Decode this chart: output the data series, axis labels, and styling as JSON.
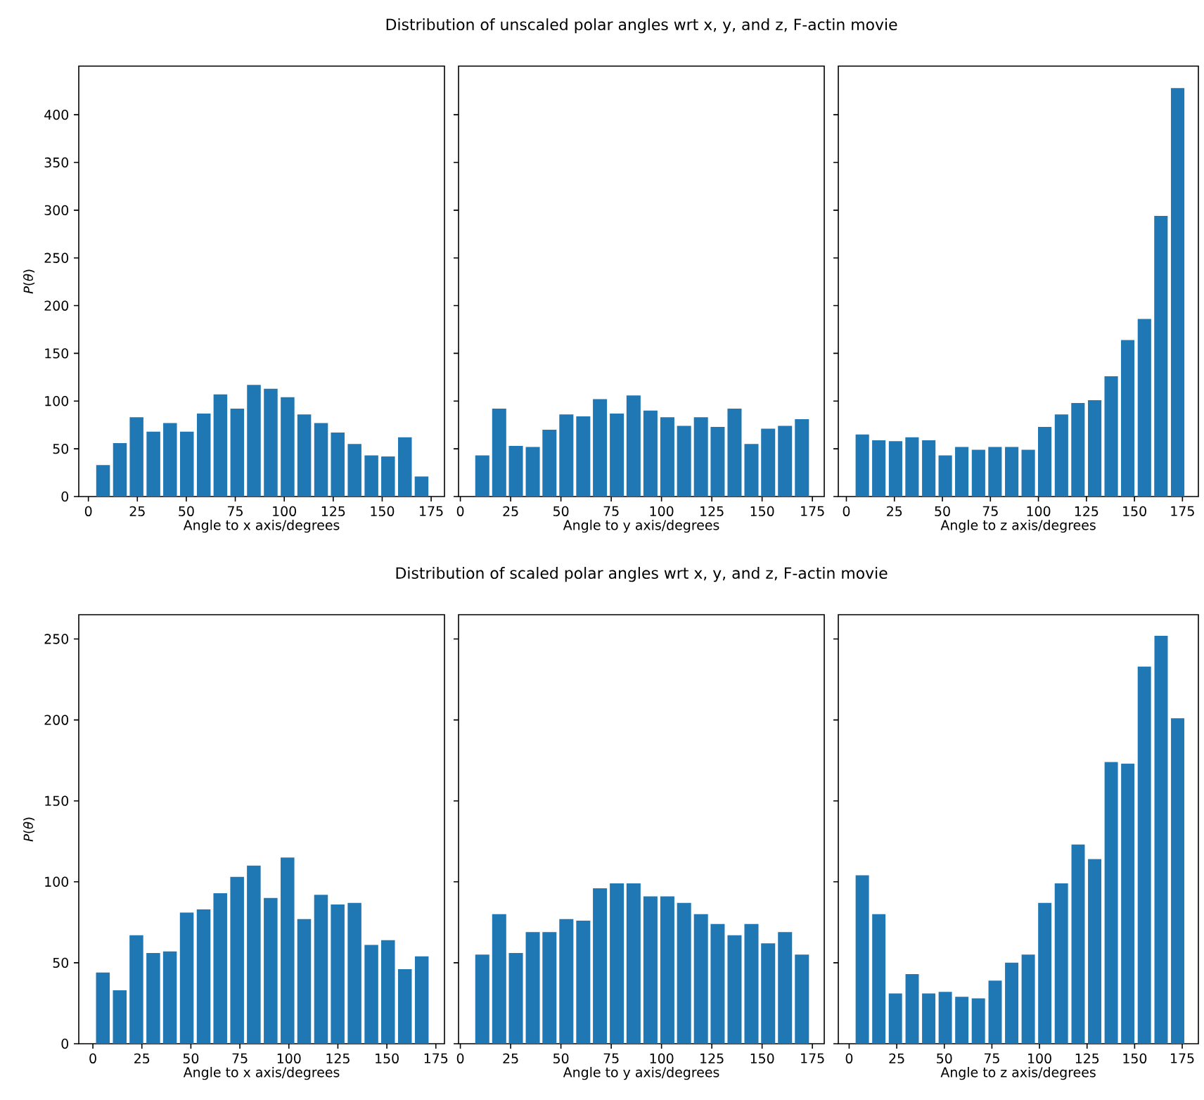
{
  "chart_data": [
    {
      "type": "bar",
      "xlabel": "Angle to x axis/degrees",
      "ylabel": "*P*(*θ*)",
      "color": "#1f77b4",
      "x": [
        7.5,
        16.1,
        24.6,
        33.2,
        41.7,
        50.3,
        58.9,
        67.4,
        76.0,
        84.5,
        93.1,
        101.7,
        110.2,
        118.8,
        127.3,
        135.9,
        144.5,
        153.0,
        161.6,
        170.1
      ],
      "values": [
        33,
        56,
        83,
        68,
        77,
        68,
        87,
        107,
        92,
        117,
        113,
        104,
        86,
        77,
        67,
        55,
        43,
        42,
        62,
        21
      ],
      "xlim": [
        -4.9,
        181.8
      ],
      "ylim": [
        0,
        451
      ],
      "xticks": [
        0,
        25,
        50,
        75,
        100,
        125,
        150,
        175
      ],
      "yticks": [
        0,
        50,
        100,
        150,
        200,
        250,
        300,
        350,
        400
      ]
    },
    {
      "type": "bar",
      "title": "Distribution of unscaled polar angles wrt x, y, and z, F-actin movie",
      "xlabel": "Angle to y axis/degrees",
      "color": "#1f77b4",
      "x": [
        10.9,
        19.3,
        27.6,
        36.0,
        44.3,
        52.7,
        61.1,
        69.4,
        77.8,
        86.1,
        94.5,
        102.9,
        111.2,
        119.6,
        127.9,
        136.3,
        144.7,
        153.0,
        161.4,
        169.8
      ],
      "values": [
        43,
        92,
        53,
        52,
        70,
        86,
        84,
        102,
        87,
        106,
        90,
        83,
        74,
        83,
        73,
        92,
        55,
        71,
        74,
        81
      ],
      "xlim": [
        -0.9,
        180.9
      ],
      "ylim": [
        0,
        451
      ],
      "xticks": [
        0,
        25,
        50,
        75,
        100,
        125,
        150,
        175
      ],
      "yticks": [
        0,
        50,
        100,
        150,
        200,
        250,
        300,
        350,
        400
      ],
      "tick_labels": "x"
    },
    {
      "type": "bar",
      "xlabel": "Angle to z axis/degrees",
      "color": "#1f77b4",
      "x": [
        8.3,
        16.9,
        25.6,
        34.2,
        42.9,
        51.5,
        60.1,
        68.8,
        77.4,
        86.1,
        94.7,
        103.3,
        112.0,
        120.6,
        129.3,
        137.9,
        146.5,
        155.2,
        163.8,
        172.5
      ],
      "values": [
        65,
        59,
        58,
        62,
        59,
        43,
        52,
        49,
        52,
        52,
        49,
        73,
        86,
        98,
        101,
        126,
        164,
        186,
        294,
        428
      ],
      "xlim": [
        -4.2,
        183.3
      ],
      "ylim": [
        0,
        451
      ],
      "xticks": [
        0,
        25,
        50,
        75,
        100,
        125,
        150,
        175
      ],
      "yticks": [
        0,
        50,
        100,
        150,
        200,
        250,
        300,
        350,
        400
      ],
      "tick_labels": "x"
    },
    {
      "type": "bar",
      "xlabel": "Angle to x axis/degrees",
      "ylabel": "*P*(*θ*)",
      "color": "#1f77b4",
      "x": [
        5.1,
        13.7,
        22.2,
        30.8,
        39.3,
        47.9,
        56.5,
        65.0,
        73.6,
        82.1,
        90.7,
        99.3,
        107.8,
        116.4,
        124.9,
        133.5,
        142.1,
        150.6,
        159.2,
        167.8
      ],
      "values": [
        44,
        33,
        67,
        56,
        57,
        81,
        83,
        93,
        103,
        110,
        90,
        115,
        77,
        92,
        86,
        87,
        61,
        64,
        46,
        54
      ],
      "xlim": [
        -7.2,
        179.4
      ],
      "ylim": [
        0,
        265
      ],
      "xticks": [
        0,
        25,
        50,
        75,
        100,
        125,
        150,
        175
      ],
      "yticks": [
        0,
        50,
        100,
        150,
        200,
        250
      ]
    },
    {
      "type": "bar",
      "title": "Distribution of scaled polar angles wrt x, y, and z, F-actin movie",
      "xlabel": "Angle to y axis/degrees",
      "color": "#1f77b4",
      "x": [
        10.9,
        19.3,
        27.6,
        36.0,
        44.3,
        52.7,
        61.1,
        69.4,
        77.8,
        86.1,
        94.5,
        102.9,
        111.2,
        119.6,
        127.9,
        136.3,
        144.7,
        153.0,
        161.4,
        169.8
      ],
      "values": [
        55,
        80,
        56,
        69,
        69,
        77,
        76,
        96,
        99,
        99,
        91,
        91,
        87,
        80,
        74,
        67,
        74,
        62,
        69,
        55
      ],
      "xlim": [
        -0.9,
        180.9
      ],
      "ylim": [
        0,
        265
      ],
      "xticks": [
        0,
        25,
        50,
        75,
        100,
        125,
        150,
        175
      ],
      "yticks": [
        0,
        50,
        100,
        150,
        200,
        250
      ],
      "tick_labels": "x"
    },
    {
      "type": "bar",
      "xlabel": "Angle to z axis/degrees",
      "color": "#1f77b4",
      "x": [
        6.9,
        15.6,
        24.3,
        33.1,
        41.8,
        50.5,
        59.2,
        67.9,
        76.7,
        85.4,
        94.1,
        102.8,
        111.5,
        120.3,
        129.0,
        137.7,
        146.4,
        155.1,
        163.9,
        172.6
      ],
      "values": [
        104,
        80,
        31,
        43,
        31,
        32,
        29,
        28,
        39,
        50,
        55,
        87,
        99,
        123,
        114,
        174,
        173,
        233,
        252,
        201
      ],
      "xlim": [
        -5.7,
        183.5
      ],
      "ylim": [
        0,
        265
      ],
      "xticks": [
        0,
        25,
        50,
        75,
        100,
        125,
        150,
        175
      ],
      "yticks": [
        0,
        50,
        100,
        150,
        200,
        250
      ],
      "tick_labels": "x"
    }
  ]
}
